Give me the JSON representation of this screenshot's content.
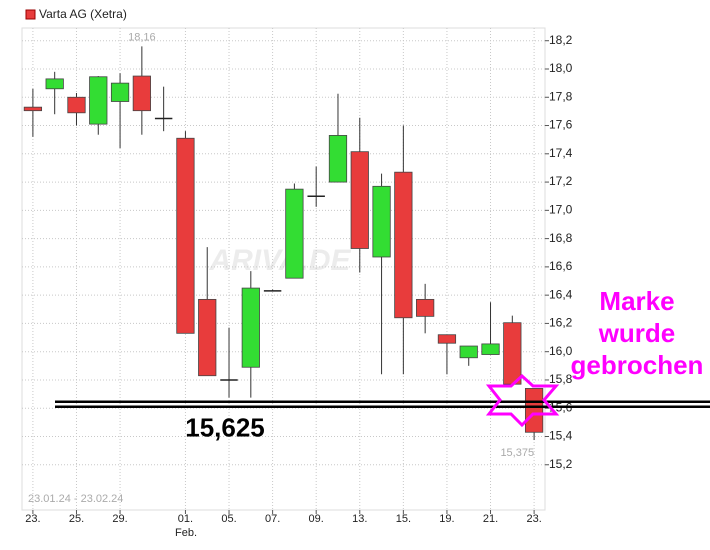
{
  "chart_data": {
    "type": "candlestick",
    "title": "Varta AG (Xetra)",
    "date_range": "23.01.24 - 23.02.24",
    "watermark": "ARIVA.DE",
    "categories": [
      "23.",
      null,
      "25.",
      null,
      "29.",
      null,
      null,
      "01.",
      null,
      "05.",
      null,
      "07.",
      null,
      "09.",
      null,
      "13.",
      null,
      "15.",
      null,
      "19.",
      null,
      "21.",
      null,
      "23."
    ],
    "month_label": "Feb.",
    "series": [
      {
        "name": "Varta AG (Xetra)",
        "up_color": "#33dd33",
        "down_color": "#e83c3c",
        "open": [
          17.73,
          17.86,
          17.8,
          17.61,
          17.77,
          17.95,
          17.65,
          17.51,
          16.37,
          15.8,
          15.89,
          16.43,
          16.52,
          17.1,
          17.2,
          17.415,
          16.67,
          17.27,
          16.37,
          16.12,
          15.957,
          15.98,
          16.205,
          15.74
        ],
        "high": [
          17.86,
          17.98,
          17.83,
          17.95,
          17.97,
          18.16,
          17.875,
          17.56,
          16.74,
          16.17,
          16.57,
          16.44,
          17.19,
          17.31,
          17.825,
          17.655,
          17.26,
          17.6,
          16.48,
          16.12,
          16.04,
          16.35,
          16.255,
          15.74
        ],
        "low": [
          17.52,
          17.68,
          17.6,
          17.535,
          17.44,
          17.535,
          17.56,
          16.13,
          15.83,
          15.675,
          15.675,
          16.43,
          16.52,
          17.025,
          17.2,
          16.56,
          15.84,
          15.84,
          16.13,
          15.84,
          15.9,
          15.98,
          15.77,
          15.375
        ],
        "close": [
          17.705,
          17.93,
          17.69,
          17.945,
          17.9,
          17.705,
          17.65,
          16.13,
          15.83,
          15.8,
          16.45,
          16.43,
          17.15,
          17.1,
          17.53,
          16.73,
          17.17,
          16.24,
          16.25,
          16.06,
          16.04,
          16.055,
          15.77,
          15.43
        ]
      }
    ],
    "high_label": {
      "value": 18.16,
      "label": "18,16"
    },
    "low_label": {
      "value": 15.375,
      "label": "15,375"
    },
    "support_line": {
      "value": 15.625,
      "label": "15,625",
      "color": "#000000"
    },
    "annotation": {
      "lines": [
        "Marke",
        "wurde",
        "gebrochen"
      ],
      "color": "#ff00ff"
    },
    "ylim": [
      14.88,
      18.29
    ],
    "yticks": [
      {
        "value": 15.2,
        "label": "15,2"
      },
      {
        "value": 15.4,
        "label": "15,4"
      },
      {
        "value": 15.6,
        "label": "15,6"
      },
      {
        "value": 15.8,
        "label": "15,8"
      },
      {
        "value": 16.0,
        "label": "16,0"
      },
      {
        "value": 16.2,
        "label": "16,2"
      },
      {
        "value": 16.4,
        "label": "16,4"
      },
      {
        "value": 16.6,
        "label": "16,6"
      },
      {
        "value": 16.8,
        "label": "16,8"
      },
      {
        "value": 17.0,
        "label": "17,0"
      },
      {
        "value": 17.2,
        "label": "17,2"
      },
      {
        "value": 17.4,
        "label": "17,4"
      },
      {
        "value": 17.6,
        "label": "17,6"
      },
      {
        "value": 17.8,
        "label": "17,8"
      },
      {
        "value": 18.0,
        "label": "18,0"
      },
      {
        "value": 18.2,
        "label": "18,2"
      }
    ],
    "grid": true
  }
}
